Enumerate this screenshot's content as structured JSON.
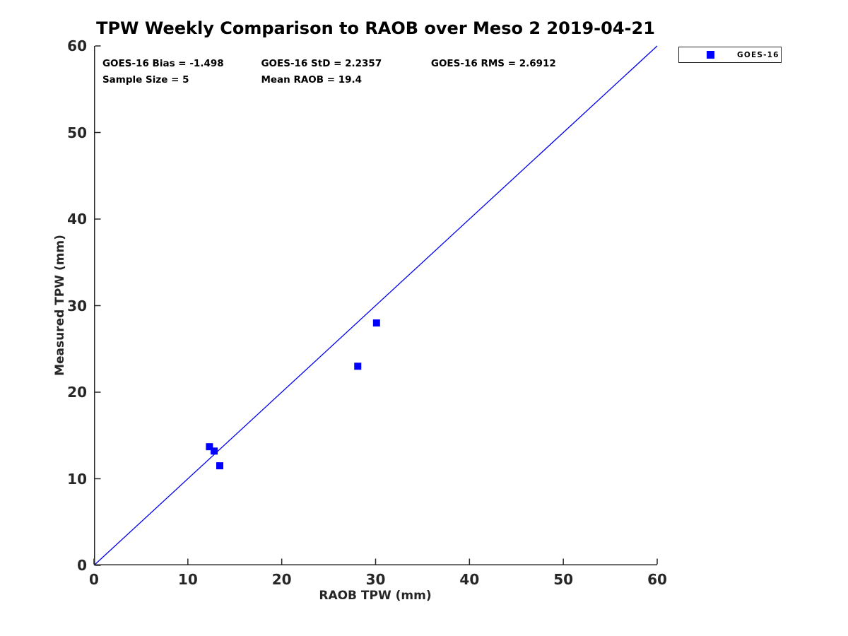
{
  "chart_data": {
    "type": "scatter",
    "title": "TPW Weekly Comparison to RAOB over Meso 2 2019-04-21",
    "xlabel": "RAOB TPW (mm)",
    "ylabel": "Measured TPW (mm)",
    "xlim": [
      0,
      60
    ],
    "ylim": [
      0,
      60
    ],
    "xticks": [
      0,
      10,
      20,
      30,
      40,
      50,
      60
    ],
    "yticks": [
      0,
      10,
      20,
      30,
      40,
      50,
      60
    ],
    "grid": false,
    "axis_color": "#262626",
    "series": [
      {
        "name": "GOES-16",
        "marker": "square",
        "color": "#0000FF",
        "points": [
          [
            12.3,
            13.7
          ],
          [
            12.8,
            13.2
          ],
          [
            13.4,
            11.5
          ],
          [
            28.1,
            23.0
          ],
          [
            30.1,
            28.0
          ]
        ]
      }
    ],
    "identity_line": {
      "from": [
        0,
        0
      ],
      "to": [
        60,
        60
      ],
      "color": "#0000EE"
    },
    "annotations": [
      {
        "text": "GOES-16 Bias = -1.498",
        "x": 0.9,
        "y": 58.0
      },
      {
        "text": "GOES-16 StD = 2.2357",
        "x": 17.8,
        "y": 58.0
      },
      {
        "text": "GOES-16 RMS = 2.6912",
        "x": 35.9,
        "y": 58.0
      },
      {
        "text": "Sample Size = 5",
        "x": 0.9,
        "y": 56.1
      },
      {
        "text": "Mean RAOB = 19.4",
        "x": 17.8,
        "y": 56.1
      }
    ],
    "legend": {
      "position": "top-right-outside",
      "entries": [
        {
          "label": "GOES-16",
          "color": "#0000FF",
          "marker": "square"
        }
      ]
    }
  }
}
